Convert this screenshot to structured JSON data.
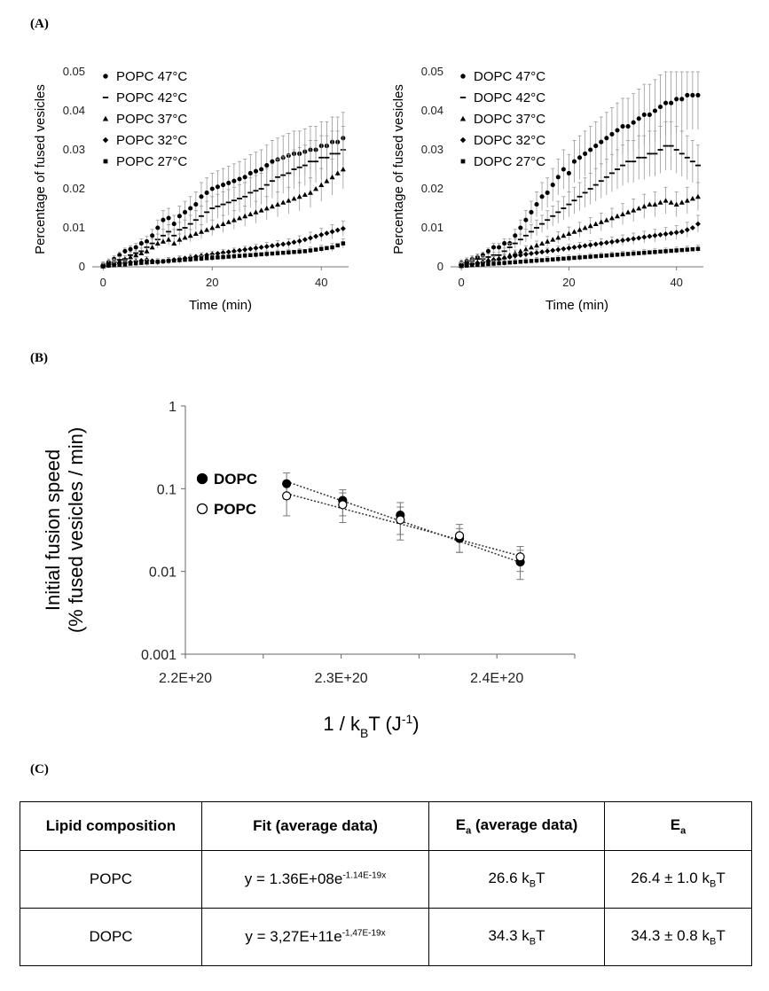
{
  "panels": {
    "a": "(A)",
    "b": "(B)",
    "c": "(C)"
  },
  "chart_data": [
    {
      "type": "scatter",
      "panel": "A-left",
      "xlabel": "Time (min)",
      "ylabel": "Percentage of fused vesicles",
      "xlim": [
        -2,
        45
      ],
      "ylim": [
        0,
        0.05
      ],
      "xticks": [
        "0",
        "20",
        "40"
      ],
      "yticks": [
        "0",
        "0.01",
        "0.02",
        "0.03",
        "0.04",
        "0.05"
      ],
      "legend": "top-left",
      "x": [
        0,
        1,
        2,
        3,
        4,
        5,
        6,
        7,
        8,
        9,
        10,
        11,
        12,
        13,
        14,
        15,
        16,
        17,
        18,
        19,
        20,
        21,
        22,
        23,
        24,
        25,
        26,
        27,
        28,
        29,
        30,
        31,
        32,
        33,
        34,
        35,
        36,
        37,
        38,
        39,
        40,
        41,
        42,
        43,
        44
      ],
      "series": [
        {
          "name": "POPC 47°C",
          "marker": "circle",
          "values": [
            0.0005,
            0.0012,
            0.002,
            0.003,
            0.004,
            0.0045,
            0.005,
            0.006,
            0.0065,
            0.008,
            0.01,
            0.012,
            0.0125,
            0.011,
            0.013,
            0.014,
            0.015,
            0.016,
            0.018,
            0.019,
            0.02,
            0.0205,
            0.021,
            0.0215,
            0.022,
            0.0225,
            0.023,
            0.024,
            0.0245,
            0.025,
            0.026,
            0.027,
            0.0275,
            0.028,
            0.0285,
            0.029,
            0.029,
            0.0295,
            0.03,
            0.03,
            0.031,
            0.031,
            0.032,
            0.032,
            0.033
          ]
        },
        {
          "name": "POPC 42°C",
          "marker": "dash",
          "values": [
            0.0003,
            0.0008,
            0.0012,
            0.0018,
            0.002,
            0.003,
            0.0035,
            0.004,
            0.005,
            0.006,
            0.007,
            0.008,
            0.009,
            0.008,
            0.0095,
            0.01,
            0.011,
            0.012,
            0.013,
            0.014,
            0.015,
            0.0155,
            0.016,
            0.0165,
            0.017,
            0.0175,
            0.018,
            0.019,
            0.0195,
            0.02,
            0.021,
            0.022,
            0.023,
            0.0235,
            0.024,
            0.025,
            0.0255,
            0.026,
            0.027,
            0.027,
            0.028,
            0.028,
            0.029,
            0.029,
            0.03
          ]
        },
        {
          "name": "POPC 37°C",
          "marker": "triangle",
          "values": [
            0.0002,
            0.0006,
            0.001,
            0.0015,
            0.002,
            0.0025,
            0.003,
            0.0035,
            0.004,
            0.005,
            0.006,
            0.0065,
            0.007,
            0.006,
            0.007,
            0.0075,
            0.008,
            0.0085,
            0.009,
            0.0095,
            0.01,
            0.0105,
            0.011,
            0.0115,
            0.012,
            0.0125,
            0.013,
            0.0135,
            0.014,
            0.0145,
            0.015,
            0.0155,
            0.016,
            0.0165,
            0.017,
            0.0175,
            0.018,
            0.0185,
            0.019,
            0.02,
            0.021,
            0.022,
            0.023,
            0.024,
            0.025
          ]
        },
        {
          "name": "POPC 32°C",
          "marker": "diamond",
          "values": [
            0.0002,
            0.0004,
            0.0006,
            0.0008,
            0.001,
            0.0012,
            0.0014,
            0.0016,
            0.0018,
            0.0015,
            0.0012,
            0.0014,
            0.0016,
            0.0018,
            0.002,
            0.0022,
            0.0024,
            0.0026,
            0.0028,
            0.003,
            0.0032,
            0.0034,
            0.0036,
            0.0038,
            0.004,
            0.0042,
            0.0044,
            0.0046,
            0.0048,
            0.005,
            0.0052,
            0.0054,
            0.0056,
            0.0058,
            0.006,
            0.0063,
            0.0066,
            0.007,
            0.0074,
            0.0078,
            0.0082,
            0.0086,
            0.009,
            0.0094,
            0.0098
          ]
        },
        {
          "name": "POPC 27°C",
          "marker": "square",
          "values": [
            0.0001,
            0.0003,
            0.0004,
            0.0005,
            0.0006,
            0.0008,
            0.0009,
            0.001,
            0.0011,
            0.0012,
            0.0013,
            0.0014,
            0.0015,
            0.0016,
            0.0017,
            0.0018,
            0.0019,
            0.002,
            0.0021,
            0.0022,
            0.0023,
            0.0024,
            0.0025,
            0.0026,
            0.0027,
            0.0028,
            0.0029,
            0.003,
            0.0031,
            0.0032,
            0.0033,
            0.0034,
            0.0035,
            0.0036,
            0.0037,
            0.0038,
            0.0039,
            0.004,
            0.0042,
            0.0044,
            0.0046,
            0.0048,
            0.005,
            0.0055,
            0.006
          ]
        }
      ]
    },
    {
      "type": "scatter",
      "panel": "A-right",
      "xlabel": "Time (min)",
      "ylabel": "Percentage of fused vesicles",
      "xlim": [
        -2,
        45
      ],
      "ylim": [
        0,
        0.05
      ],
      "xticks": [
        "0",
        "20",
        "40"
      ],
      "yticks": [
        "0",
        "0.01",
        "0.02",
        "0.03",
        "0.04",
        "0.05"
      ],
      "legend": "top-left",
      "x": [
        0,
        1,
        2,
        3,
        4,
        5,
        6,
        7,
        8,
        9,
        10,
        11,
        12,
        13,
        14,
        15,
        16,
        17,
        18,
        19,
        20,
        21,
        22,
        23,
        24,
        25,
        26,
        27,
        28,
        29,
        30,
        31,
        32,
        33,
        34,
        35,
        36,
        37,
        38,
        39,
        40,
        41,
        42,
        43,
        44
      ],
      "series": [
        {
          "name": "DOPC 47°C",
          "marker": "circle",
          "values": [
            0.001,
            0.0015,
            0.002,
            0.0025,
            0.003,
            0.004,
            0.005,
            0.005,
            0.006,
            0.006,
            0.008,
            0.01,
            0.012,
            0.014,
            0.016,
            0.018,
            0.019,
            0.021,
            0.023,
            0.025,
            0.024,
            0.027,
            0.028,
            0.029,
            0.03,
            0.031,
            0.032,
            0.033,
            0.034,
            0.035,
            0.036,
            0.036,
            0.037,
            0.038,
            0.039,
            0.039,
            0.04,
            0.041,
            0.042,
            0.042,
            0.043,
            0.043,
            0.044,
            0.044,
            0.044
          ]
        },
        {
          "name": "DOPC 42°C",
          "marker": "dash",
          "values": [
            0.0005,
            0.001,
            0.0015,
            0.002,
            0.002,
            0.0025,
            0.003,
            0.003,
            0.004,
            0.005,
            0.006,
            0.007,
            0.008,
            0.009,
            0.01,
            0.011,
            0.012,
            0.013,
            0.014,
            0.015,
            0.016,
            0.017,
            0.018,
            0.019,
            0.02,
            0.021,
            0.022,
            0.023,
            0.024,
            0.025,
            0.026,
            0.027,
            0.027,
            0.028,
            0.028,
            0.029,
            0.029,
            0.03,
            0.031,
            0.031,
            0.03,
            0.029,
            0.028,
            0.027,
            0.026
          ]
        },
        {
          "name": "DOPC 37°C",
          "marker": "triangle",
          "values": [
            0.0003,
            0.0006,
            0.001,
            0.0012,
            0.0015,
            0.0018,
            0.002,
            0.0022,
            0.0025,
            0.003,
            0.0035,
            0.004,
            0.0045,
            0.005,
            0.0055,
            0.006,
            0.0065,
            0.007,
            0.0075,
            0.008,
            0.0085,
            0.009,
            0.0095,
            0.01,
            0.0105,
            0.011,
            0.0115,
            0.012,
            0.0125,
            0.013,
            0.0135,
            0.014,
            0.0145,
            0.015,
            0.0155,
            0.016,
            0.016,
            0.0165,
            0.017,
            0.0165,
            0.016,
            0.0165,
            0.017,
            0.0175,
            0.018
          ]
        },
        {
          "name": "DOPC 32°C",
          "marker": "diamond",
          "values": [
            0.0003,
            0.0005,
            0.0008,
            0.001,
            0.0012,
            0.0015,
            0.0018,
            0.002,
            0.0022,
            0.0025,
            0.0028,
            0.003,
            0.0032,
            0.0034,
            0.0036,
            0.0038,
            0.004,
            0.0042,
            0.0044,
            0.0046,
            0.0048,
            0.005,
            0.0052,
            0.0054,
            0.0056,
            0.0058,
            0.006,
            0.0062,
            0.0064,
            0.0066,
            0.0068,
            0.007,
            0.0072,
            0.0074,
            0.0076,
            0.0078,
            0.008,
            0.0082,
            0.0084,
            0.0086,
            0.0088,
            0.009,
            0.0095,
            0.01,
            0.011
          ]
        },
        {
          "name": "DOPC 27°C",
          "marker": "square",
          "values": [
            0.0002,
            0.0003,
            0.0004,
            0.0005,
            0.0006,
            0.0007,
            0.0008,
            0.0009,
            0.001,
            0.0011,
            0.0012,
            0.0013,
            0.0014,
            0.0015,
            0.0016,
            0.0017,
            0.0018,
            0.0019,
            0.002,
            0.0021,
            0.0022,
            0.0023,
            0.0024,
            0.0025,
            0.0026,
            0.0027,
            0.0028,
            0.0029,
            0.003,
            0.0031,
            0.0032,
            0.0033,
            0.0034,
            0.0035,
            0.0036,
            0.0037,
            0.0038,
            0.0039,
            0.004,
            0.0041,
            0.0042,
            0.0043,
            0.0044,
            0.0045,
            0.0046
          ]
        }
      ]
    },
    {
      "type": "scatter",
      "panel": "B",
      "xlabel_main": "1 / k",
      "xlabel_sub": "B",
      "xlabel_rest": "T (J",
      "xlabel_sup": "-1",
      "xlabel_end": ")",
      "ylabel_line1": "Initial fusion speed",
      "ylabel_line2": "(% fused vesicles / min)",
      "yscale": "log",
      "xlim": [
        2.2e+20,
        2.45e+20
      ],
      "ylim": [
        0.001,
        1
      ],
      "xticks": [
        {
          "v": 2.2e+20,
          "label": "2.2E+20"
        },
        {
          "v": 2.3e+20,
          "label": "2.3E+20"
        },
        {
          "v": 2.4e+20,
          "label": "2.4E+20"
        }
      ],
      "yticks": [
        {
          "v": 0.001,
          "label": "0.001"
        },
        {
          "v": 0.01,
          "label": "0.01"
        },
        {
          "v": 0.1,
          "label": "0.1"
        },
        {
          "v": 1,
          "label": "1"
        }
      ],
      "legend": "left",
      "series": [
        {
          "name": "DOPC",
          "marker": "filled-circle",
          "x": [
            2.265e+20,
            2.301e+20,
            2.338e+20,
            2.376e+20,
            2.415e+20
          ],
          "y": [
            0.115,
            0.072,
            0.048,
            0.025,
            0.013
          ],
          "err": [
            0.04,
            0.025,
            0.02,
            0.008,
            0.005
          ]
        },
        {
          "name": "POPC",
          "marker": "open-circle",
          "x": [
            2.265e+20,
            2.301e+20,
            2.338e+20,
            2.376e+20,
            2.415e+20
          ],
          "y": [
            0.082,
            0.064,
            0.042,
            0.027,
            0.015
          ],
          "err": [
            0.035,
            0.025,
            0.018,
            0.01,
            0.005
          ]
        }
      ],
      "trendlines": [
        {
          "series": "DOPC",
          "x": [
            2.265e+20,
            2.415e+20
          ],
          "y": [
            0.122,
            0.0129
          ]
        },
        {
          "series": "POPC",
          "x": [
            2.265e+20,
            2.415e+20
          ],
          "y": [
            0.0873,
            0.0154
          ]
        }
      ]
    }
  ],
  "table": {
    "headers": {
      "h1": "Lipid composition",
      "h2": "Fit (average data)",
      "h3_main": "E",
      "h3_sub": "a",
      "h3_rest": " (average data)",
      "h4_main": "E",
      "h4_sub": "a"
    },
    "rows": [
      {
        "lipid": "POPC",
        "fit_main": "y = 1.36E+08e",
        "fit_exp": "-1.14E-19x",
        "ea_avg_main": "26.6 k",
        "ea_avg_sub": "B",
        "ea_avg_end": "T",
        "ea_main": "26.4 ± 1.0 k",
        "ea_sub": "B",
        "ea_end": "T"
      },
      {
        "lipid": "DOPC",
        "fit_main": "y = 3,27E+11e",
        "fit_exp": "-1,47E-19x",
        "ea_avg_main": "34.3 k",
        "ea_avg_sub": "B",
        "ea_avg_end": "T",
        "ea_main": "34.3 ± 0.8 k",
        "ea_sub": "B",
        "ea_end": "T"
      }
    ]
  }
}
